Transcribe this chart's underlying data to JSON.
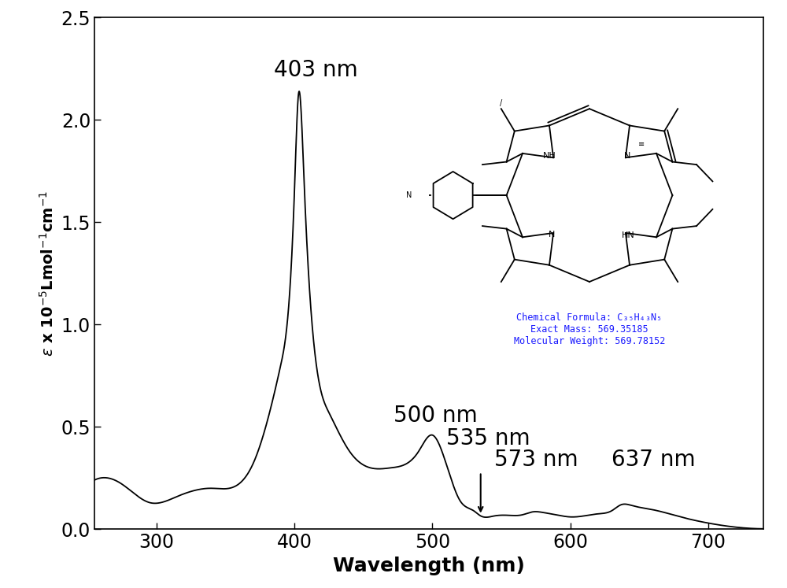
{
  "xlim": [
    255,
    740
  ],
  "ylim": [
    0.0,
    2.5
  ],
  "xticks": [
    300,
    400,
    500,
    600,
    700
  ],
  "yticks": [
    0.0,
    0.5,
    1.0,
    1.5,
    2.0,
    2.5
  ],
  "xlabel": "Wavelength (nm)",
  "line_color": "#000000",
  "background_color": "#ffffff",
  "chem_text_color": "#1a1aff",
  "tick_labelsize": 17,
  "xlabel_fontsize": 18,
  "annotation_fontsize": 20
}
